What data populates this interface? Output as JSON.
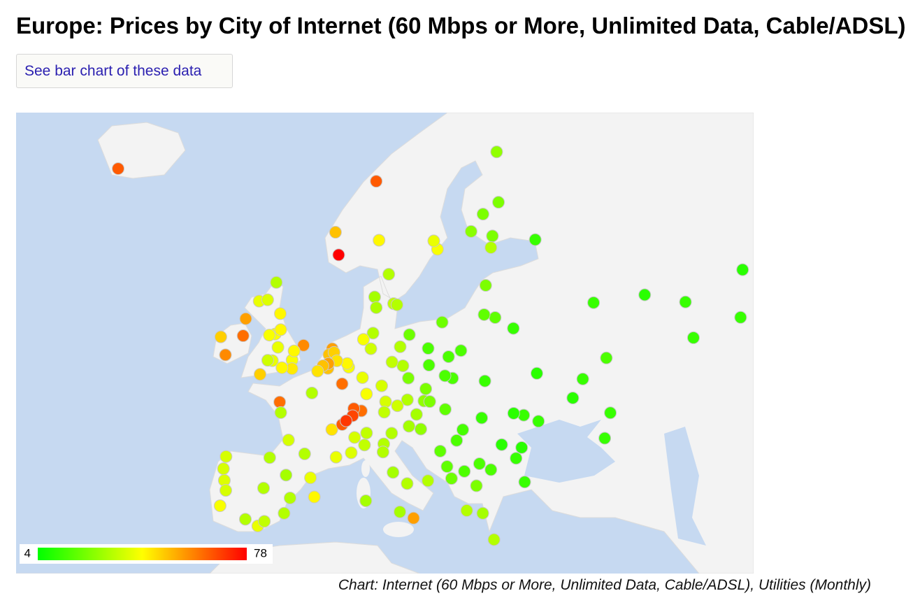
{
  "header": {
    "title": "Europe: Prices by City of Internet (60 Mbps or More, Unlimited Data, Cable/ADSL)",
    "button": "See bar chart of these data"
  },
  "chart_data": {
    "type": "map",
    "caption": "Chart: Internet (60 Mbps or More, Unlimited Data, Cable/ADSL), Utilities (Monthly)",
    "color_scale": {
      "min": 4,
      "max": 78,
      "colors": [
        "#00ff00",
        "#ffff00",
        "#ff0000"
      ]
    },
    "lon": [
      -21.9,
      10.4,
      5.3,
      5.7,
      10.75,
      18.07,
      17.6,
      11.97,
      12.57,
      13.0,
      10.2,
      10.4,
      24.94,
      23.76,
      22.27,
      25.47,
      25.7,
      30.3,
      24.75,
      24.1,
      25.28,
      23.9,
      27.56,
      37.6,
      44.0,
      49.1,
      50.1,
      56.25,
      56.0,
      39.2,
      36.25,
      30.5,
      35.0,
      39.7,
      30.7,
      39.0,
      24.0,
      28.86,
      21.0,
      18.65,
      16.9,
      17.0,
      19.95,
      19.45,
      14.55,
      19.0,
      13.4,
      10.0,
      11.57,
      8.68,
      6.96,
      6.77,
      9.18,
      13.74,
      12.37,
      9.73,
      8.8,
      11.08,
      4.9,
      4.48,
      5.12,
      5.47,
      4.35,
      4.4,
      3.72,
      6.13,
      2.35,
      3.06,
      -0.13,
      -1.9,
      -2.24,
      -1.55,
      -2.98,
      -2.6,
      -4.25,
      -3.19,
      -2.1,
      -1.6,
      -5.93,
      -6.26,
      -8.47,
      -9.05,
      -3.18,
      1.3,
      0.12,
      -0.14,
      -1.4,
      -4.14,
      -1.68,
      -1.55,
      -0.58,
      1.44,
      4.84,
      5.37,
      7.27,
      6.14,
      8.54,
      7.59,
      7.45,
      6.63,
      9.19,
      7.69,
      8.93,
      12.33,
      11.34,
      11.25,
      12.5,
      14.27,
      16.87,
      13.36,
      15.07,
      9.1,
      16.37,
      15.44,
      14.3,
      13.05,
      11.4,
      14.42,
      16.6,
      17.1,
      19.04,
      14.5,
      15.98,
      20.46,
      18.41,
      19.26,
      21.43,
      19.82,
      23.32,
      26.1,
      23.6,
      21.23,
      27.6,
      28.6,
      27.9,
      24.75,
      22.94,
      23.73,
      21.73,
      25.14,
      28.98,
      -3.7,
      2.17,
      -0.38,
      -5.98,
      -4.42,
      -2.93,
      -0.89,
      -8.61,
      -9.14,
      -8.43,
      -8.72,
      -8.4,
      -3.6,
      -1.13,
      2.65
    ],
    "lat": [
      64.1,
      63.4,
      60.4,
      58.97,
      59.9,
      59.33,
      59.86,
      57.7,
      55.68,
      55.6,
      56.15,
      55.4,
      60.17,
      61.5,
      60.45,
      65.0,
      62.2,
      59.94,
      59.44,
      56.95,
      54.69,
      54.9,
      53.9,
      55.75,
      56.3,
      55.8,
      53.2,
      58.0,
      54.7,
      51.66,
      50.0,
      50.45,
      48.45,
      47.2,
      46.48,
      45.0,
      49.84,
      47.0,
      52.23,
      54.35,
      52.4,
      51.1,
      50.06,
      51.76,
      53.43,
      50.26,
      52.52,
      53.55,
      48.14,
      50.11,
      50.94,
      51.23,
      48.78,
      51.05,
      51.34,
      52.37,
      53.08,
      49.45,
      52.37,
      51.92,
      52.09,
      51.44,
      50.85,
      51.22,
      51.05,
      49.61,
      48.86,
      50.63,
      51.5,
      52.48,
      53.48,
      53.8,
      53.4,
      51.45,
      55.86,
      55.95,
      57.15,
      54.97,
      54.6,
      53.35,
      51.9,
      53.27,
      51.48,
      52.63,
      52.2,
      50.82,
      50.9,
      50.37,
      48.11,
      47.22,
      44.84,
      43.6,
      45.76,
      43.3,
      43.7,
      46.2,
      47.37,
      47.56,
      46.95,
      46.52,
      45.46,
      45.07,
      44.4,
      45.44,
      44.5,
      43.77,
      41.9,
      40.85,
      41.12,
      38.12,
      37.5,
      39.2,
      48.2,
      47.07,
      48.3,
      47.8,
      47.26,
      50.07,
      49.2,
      48.15,
      47.5,
      46.05,
      45.8,
      44.8,
      43.85,
      42.44,
      42.0,
      41.33,
      42.7,
      44.43,
      46.77,
      45.75,
      47.16,
      44.17,
      43.2,
      42.15,
      40.64,
      37.98,
      38.25,
      35.34,
      41.0,
      40.42,
      41.39,
      39.47,
      37.39,
      36.72,
      43.26,
      41.65,
      41.15,
      38.72,
      40.2,
      42.24,
      43.36,
      37.18,
      37.98,
      39.57
    ],
    "values": [
      65,
      65,
      50,
      78,
      42,
      40,
      38,
      30,
      32,
      30,
      28,
      29,
      22,
      22,
      24,
      25,
      22,
      12,
      30,
      22,
      18,
      18,
      12,
      12,
      10,
      12,
      12,
      10,
      12,
      15,
      12,
      10,
      10,
      12,
      12,
      12,
      12,
      12,
      15,
      20,
      15,
      15,
      15,
      15,
      20,
      15,
      30,
      30,
      35,
      38,
      40,
      42,
      40,
      30,
      32,
      34,
      40,
      35,
      55,
      50,
      48,
      45,
      50,
      55,
      50,
      62,
      30,
      45,
      40,
      38,
      40,
      42,
      40,
      38,
      38,
      36,
      30,
      42,
      55,
      62,
      58,
      48,
      34,
      58,
      42,
      44,
      42,
      48,
      62,
      30,
      35,
      30,
      45,
      38,
      36,
      65,
      62,
      65,
      68,
      70,
      32,
      35,
      32,
      30,
      30,
      30,
      28,
      30,
      30,
      28,
      55,
      28,
      25,
      28,
      30,
      34,
      32,
      22,
      22,
      22,
      18,
      28,
      25,
      15,
      18,
      18,
      15,
      20,
      15,
      10,
      12,
      14,
      10,
      10,
      12,
      15,
      22,
      28,
      30,
      30,
      12,
      30,
      38,
      30,
      30,
      38,
      30,
      28,
      36,
      40,
      35,
      35,
      35,
      32,
      30,
      42
    ]
  }
}
